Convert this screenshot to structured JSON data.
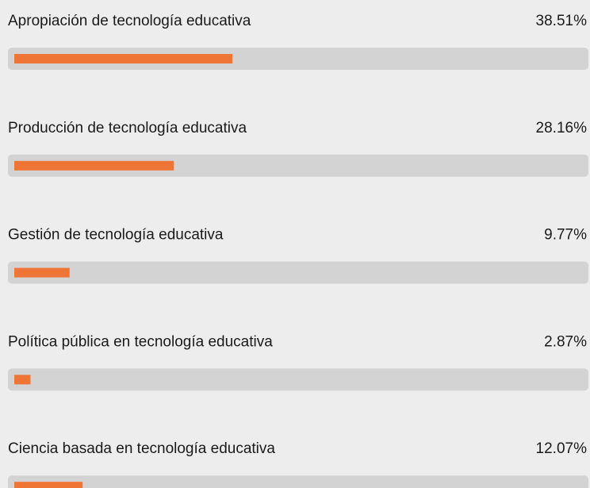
{
  "chart_data": {
    "type": "bar",
    "categories": [
      "Apropiación de tecnología educativa",
      "Producción de tecnología educativa",
      "Gestión de tecnología educativa",
      "Política pública en tecnología educativa",
      "Ciencia basada en tecnología educativa"
    ],
    "values": [
      38.51,
      28.16,
      9.77,
      2.87,
      12.07
    ],
    "value_labels": [
      "38.51%",
      "28.16%",
      "9.77%",
      "2.87%",
      "12.07%"
    ],
    "color": "#ee7536",
    "xlim": [
      0,
      100
    ]
  }
}
